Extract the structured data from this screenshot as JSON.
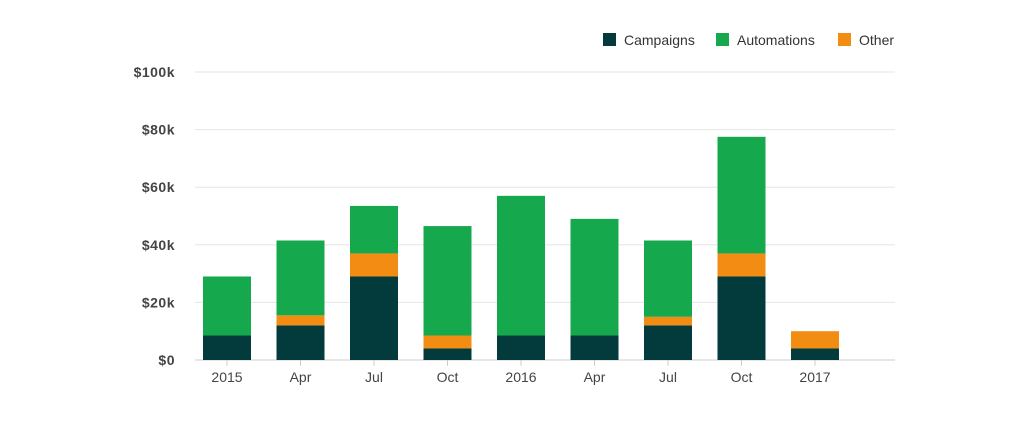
{
  "chart_data": {
    "type": "bar",
    "stacked": true,
    "title": "",
    "xlabel": "",
    "ylabel": "",
    "categories": [
      "2015",
      "Apr",
      "Jul",
      "Oct",
      "2016",
      "Apr",
      "Jul",
      "Oct",
      "2017"
    ],
    "ylim": [
      0,
      100000
    ],
    "yticks": [
      0,
      20000,
      40000,
      60000,
      80000,
      100000
    ],
    "ytick_labels": [
      "$0",
      "$20k",
      "$40k",
      "$60k",
      "$80k",
      "$100k"
    ],
    "grid": true,
    "legend_position": "top-right",
    "series": [
      {
        "name": "Campaigns",
        "color": "#033b3c",
        "values": [
          8500,
          12000,
          29000,
          4000,
          8500,
          8500,
          12000,
          29000,
          4000
        ]
      },
      {
        "name": "Other",
        "color": "#f28c12",
        "values": [
          0,
          3500,
          8000,
          4500,
          0,
          0,
          3000,
          8000,
          6000
        ]
      },
      {
        "name": "Automations",
        "color": "#16a84c",
        "values": [
          20500,
          26000,
          16500,
          38000,
          48500,
          40500,
          26500,
          40500,
          0
        ]
      }
    ],
    "legend_order": [
      "Campaigns",
      "Automations",
      "Other"
    ]
  }
}
